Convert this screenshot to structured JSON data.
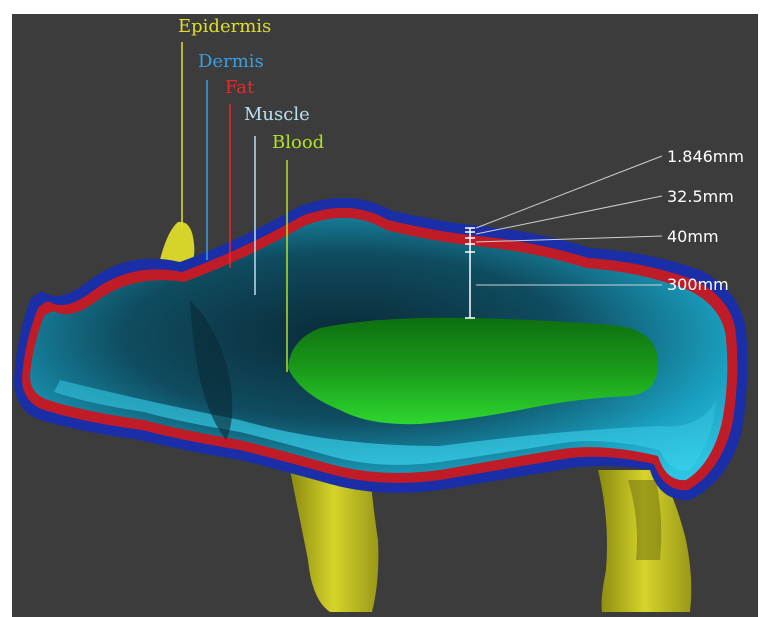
{
  "labels": {
    "epidermis": "Epidermis",
    "dermis": "Dermis",
    "fat": "Fat",
    "muscle": "Muscle",
    "blood": "Blood"
  },
  "measurements": {
    "m1": "1.846mm",
    "m2": "32.5mm",
    "m3": "40mm",
    "m4": "300mm"
  },
  "colors": {
    "epidermis": "#e0de2a",
    "dermis": "#3a9ee0",
    "fat": "#e8282c",
    "muscle": "#b8e0ee",
    "blood": "#b4e02a",
    "background": "#3c3c3c",
    "measure": "#ffffff"
  }
}
